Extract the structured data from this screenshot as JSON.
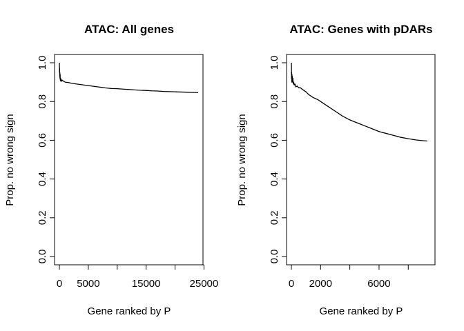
{
  "chart_data": [
    {
      "type": "line",
      "title": "ATAC: All genes",
      "xlabel": "Gene ranked by P",
      "ylabel": "Prop. no wrong sign",
      "xlim": [
        0,
        24000
      ],
      "ylim": [
        0,
        1
      ],
      "xticks": [
        0,
        5000,
        10000,
        15000,
        20000,
        25000
      ],
      "xtick_labels": [
        "0",
        "5000",
        "",
        "15000",
        "",
        "25000"
      ],
      "yticks": [
        0,
        0.2,
        0.4,
        0.6,
        0.8,
        1.0
      ],
      "ytick_labels": [
        "0.0",
        "0.2",
        "0.4",
        "0.6",
        "0.8",
        "1.0"
      ],
      "grid": false,
      "series": [
        {
          "x": [
            1,
            20,
            40,
            60,
            80,
            100,
            130,
            160,
            200,
            250,
            300,
            400,
            500,
            700,
            1000,
            1500,
            2000,
            3000,
            4000,
            5000,
            6000,
            7000,
            8000,
            9000,
            10000,
            11000,
            12000,
            13000,
            14000,
            15000,
            16000,
            17000,
            18000,
            19000,
            20000,
            21000,
            22000,
            23000,
            24000
          ],
          "y": [
            1.0,
            0.95,
            0.97,
            0.93,
            0.95,
            0.92,
            0.94,
            0.91,
            0.92,
            0.905,
            0.915,
            0.905,
            0.91,
            0.905,
            0.9,
            0.898,
            0.895,
            0.89,
            0.886,
            0.882,
            0.878,
            0.874,
            0.87,
            0.867,
            0.866,
            0.864,
            0.862,
            0.86,
            0.858,
            0.857,
            0.855,
            0.854,
            0.852,
            0.851,
            0.85,
            0.849,
            0.848,
            0.847,
            0.846
          ]
        }
      ]
    },
    {
      "type": "line",
      "title": "ATAC: Genes with pDARs",
      "xlabel": "Gene ranked by P",
      "ylabel": "Prop. no wrong sign",
      "xlim": [
        0,
        9500
      ],
      "ylim": [
        0,
        1
      ],
      "xticks": [
        0,
        2000,
        4000,
        6000,
        8000
      ],
      "xtick_labels": [
        "0",
        "2000",
        "",
        "6000",
        ""
      ],
      "yticks": [
        0,
        0.2,
        0.4,
        0.6,
        0.8,
        1.0
      ],
      "ytick_labels": [
        "0.0",
        "0.2",
        "0.4",
        "0.6",
        "0.8",
        "1.0"
      ],
      "grid": false,
      "series": [
        {
          "x": [
            1,
            10,
            20,
            30,
            40,
            50,
            60,
            80,
            100,
            130,
            160,
            200,
            250,
            300,
            400,
            500,
            600,
            800,
            1000,
            1200,
            1500,
            1800,
            2000,
            2500,
            3000,
            3500,
            4000,
            4500,
            5000,
            5500,
            6000,
            6500,
            7000,
            7500,
            8000,
            8500,
            9000,
            9300
          ],
          "y": [
            1.0,
            0.92,
            0.95,
            0.9,
            0.94,
            0.91,
            0.93,
            0.9,
            0.92,
            0.89,
            0.9,
            0.885,
            0.89,
            0.875,
            0.88,
            0.87,
            0.872,
            0.86,
            0.85,
            0.835,
            0.82,
            0.81,
            0.8,
            0.775,
            0.75,
            0.725,
            0.705,
            0.69,
            0.675,
            0.66,
            0.645,
            0.635,
            0.625,
            0.615,
            0.608,
            0.602,
            0.598,
            0.596
          ]
        }
      ]
    }
  ]
}
